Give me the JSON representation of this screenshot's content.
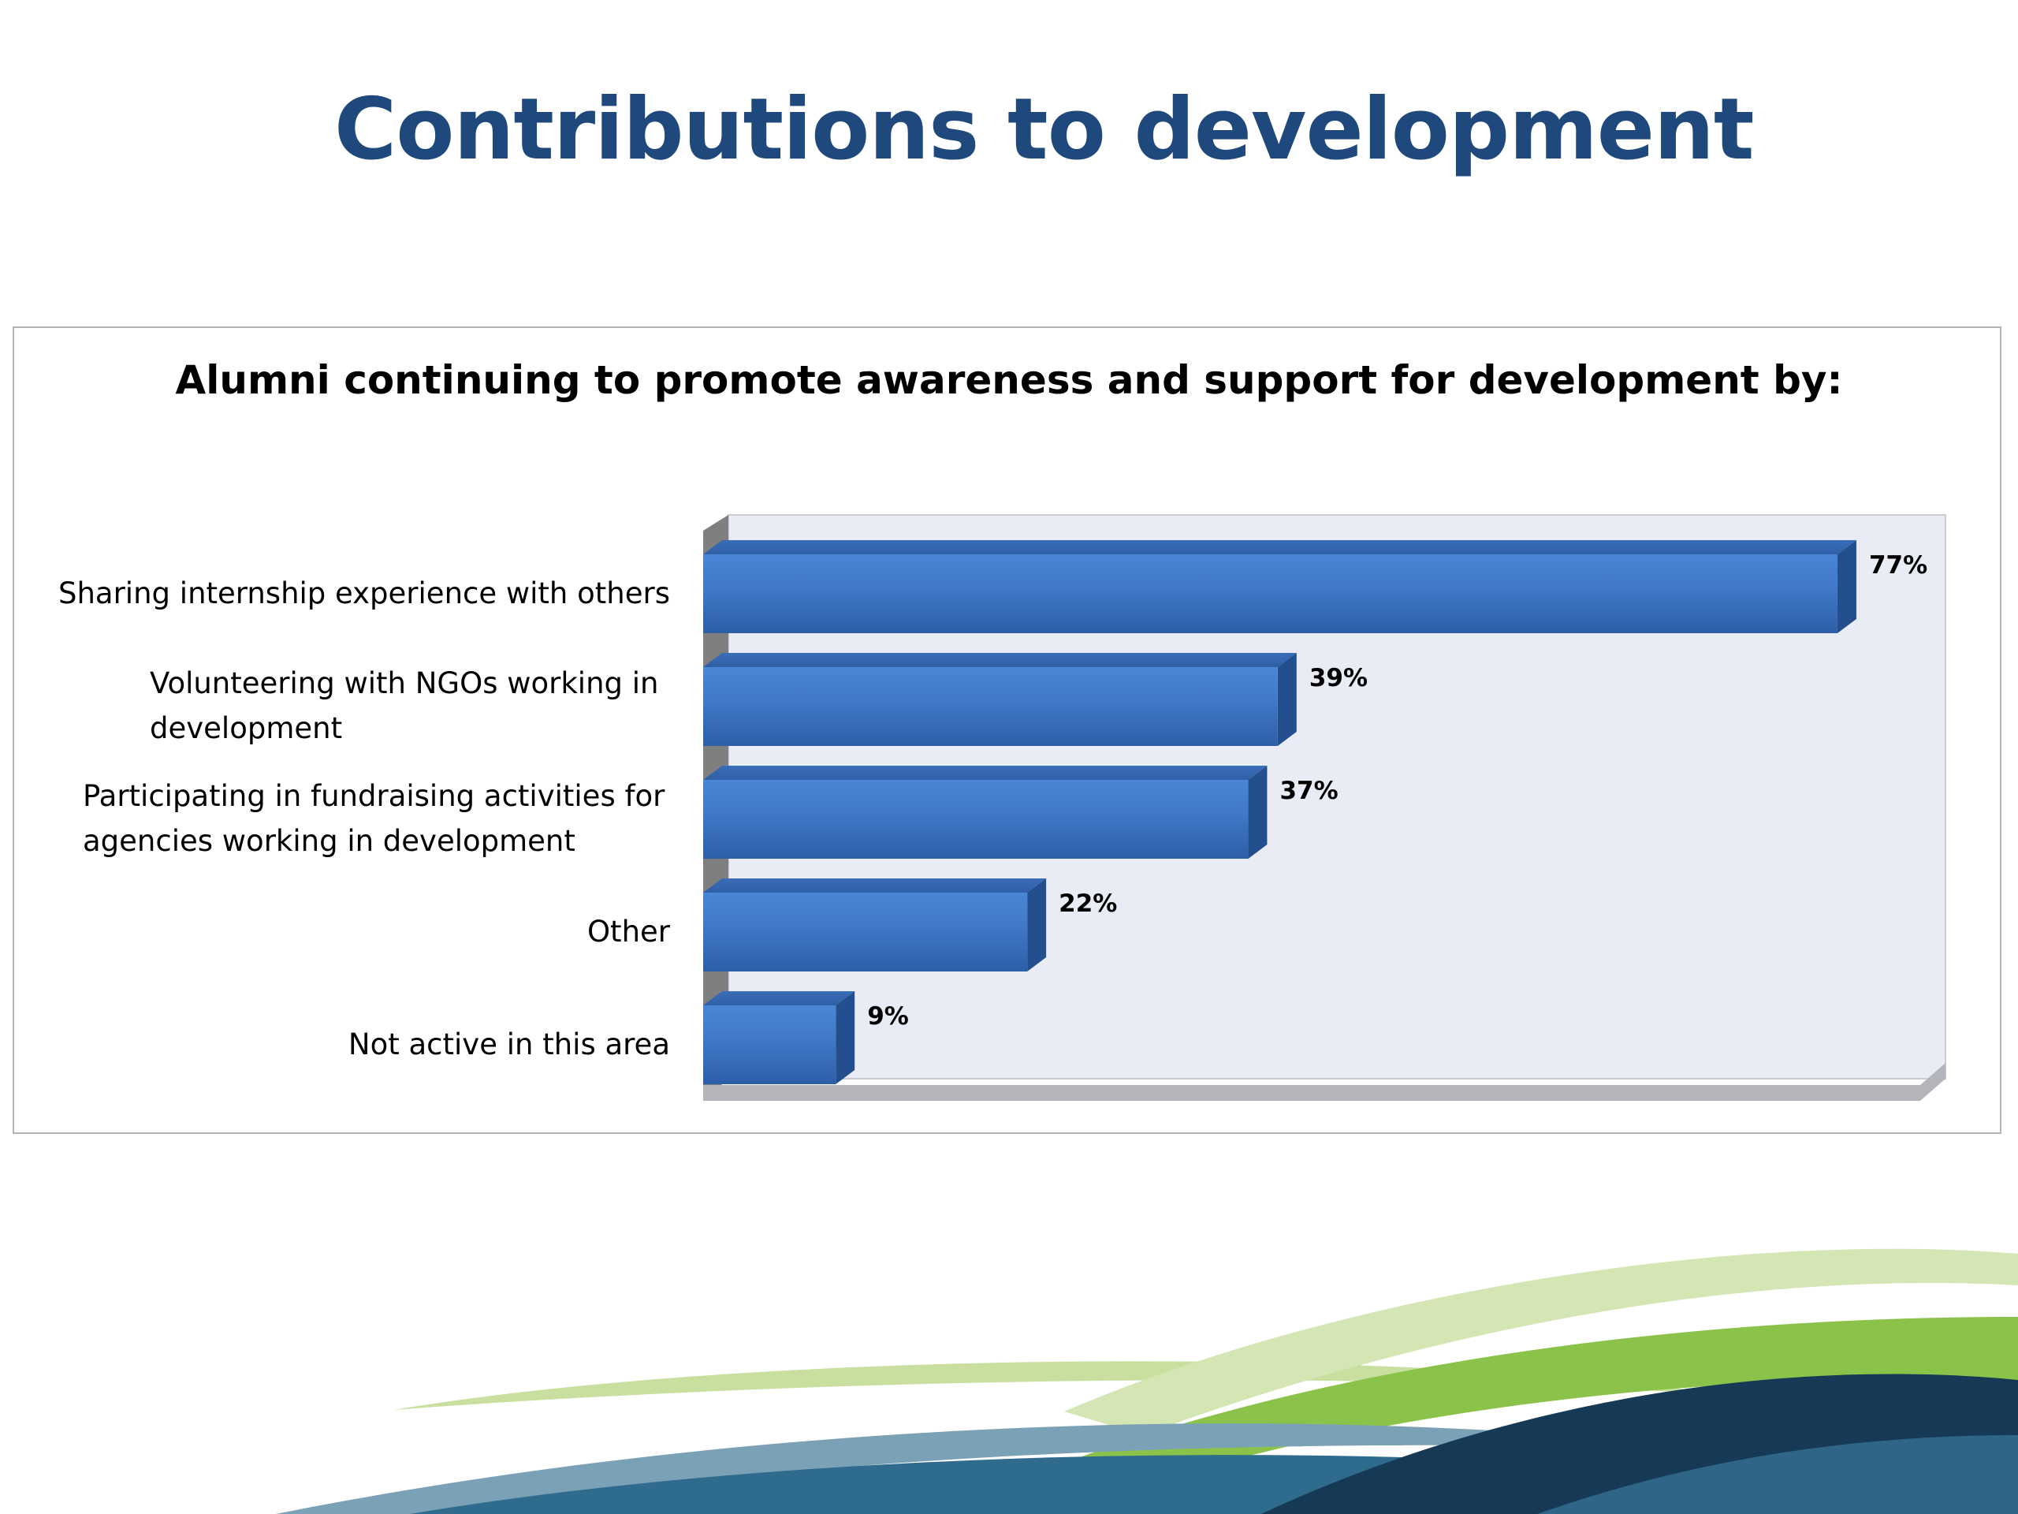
{
  "slide": {
    "title": "Contributions to development"
  },
  "chart_data": {
    "type": "bar",
    "orientation": "horizontal",
    "title": "Alumni continuing to promote awareness and support for development by:",
    "categories": [
      "Sharing internship experience with others",
      "Volunteering with NGOs working in development",
      "Participating in fundraising activities for agencies working in development",
      "Other",
      "Not active in this area"
    ],
    "values": [
      77,
      39,
      37,
      22,
      9
    ],
    "data_labels": [
      "77%",
      "39%",
      "37%",
      "22%",
      "9%"
    ],
    "unit": "%",
    "xlim": [
      0,
      80
    ],
    "grid": false,
    "legend": "none",
    "bar_color": "#3f75c2",
    "wall_color": "#e9ecf5"
  }
}
